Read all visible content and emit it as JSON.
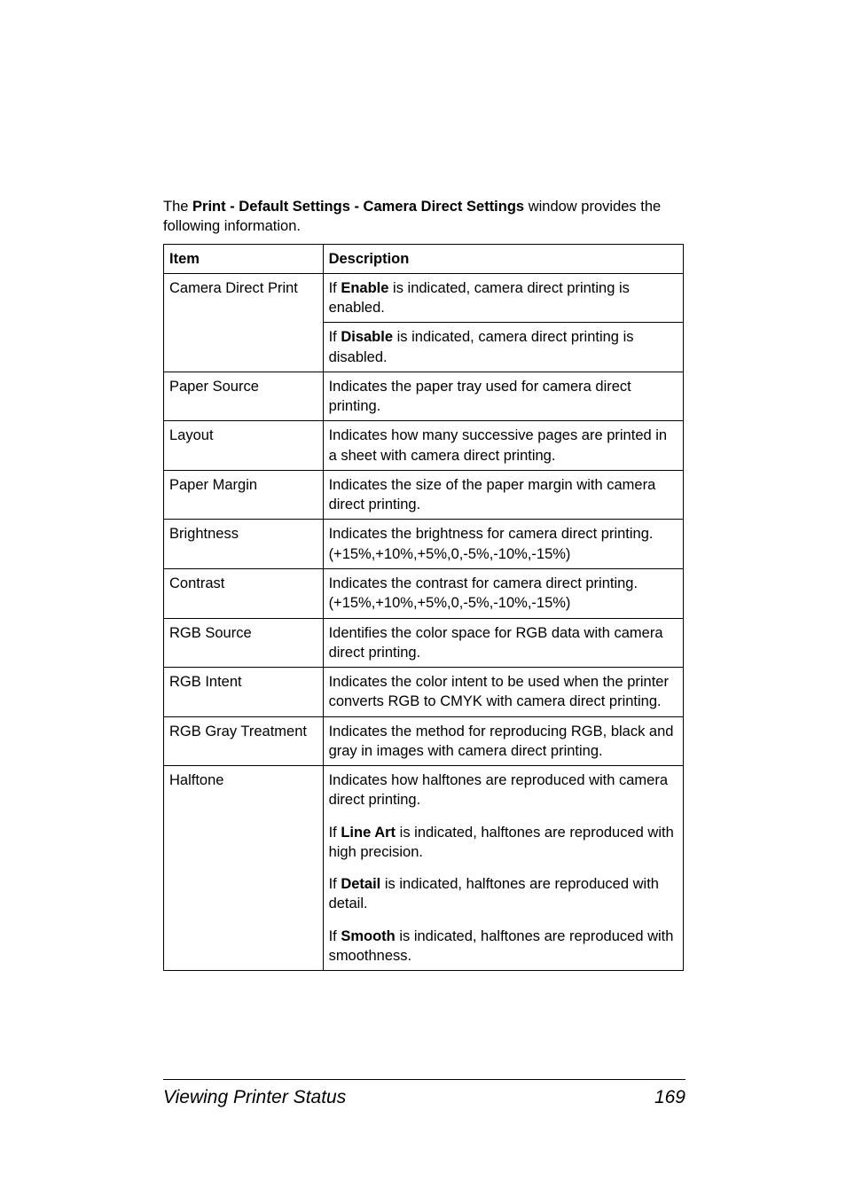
{
  "intro": {
    "prefix": "The ",
    "bold": "Print - Default Settings - Camera Direct Settings",
    "suffix": " window provides the following information."
  },
  "table": {
    "header": {
      "item": "Item",
      "description": "Description"
    },
    "rows": [
      {
        "item": "Camera Direct Print",
        "blocks": [
          {
            "pre": "If ",
            "bold": "Enable",
            "post": " is indicated, camera direct printing is enabled."
          },
          {
            "pre": "If ",
            "bold": "Disable",
            "post": " is indicated, camera direct printing is disabled."
          }
        ]
      },
      {
        "item": "Paper Source",
        "blocks": [
          {
            "text": "Indicates the paper tray used for camera direct printing."
          }
        ]
      },
      {
        "item": "Layout",
        "blocks": [
          {
            "text": "Indicates how many successive pages are printed in a sheet with camera direct printing."
          }
        ]
      },
      {
        "item": "Paper Margin",
        "blocks": [
          {
            "text": "Indicates the size of the paper margin with camera direct printing."
          }
        ]
      },
      {
        "item": "Brightness",
        "blocks": [
          {
            "text": "Indicates the brightness for camera direct printing. (+15%,+10%,+5%,0,-5%,-10%,-15%)"
          }
        ]
      },
      {
        "item": "Contrast",
        "blocks": [
          {
            "text": "Indicates the contrast for camera direct printing. (+15%,+10%,+5%,0,-5%,-10%,-15%)"
          }
        ]
      },
      {
        "item": "RGB Source",
        "blocks": [
          {
            "text": "Identifies the color space for RGB data with camera direct printing."
          }
        ]
      },
      {
        "item": "RGB Intent",
        "blocks": [
          {
            "text": "Indicates the color intent to be used when the printer converts RGB to CMYK with camera direct printing."
          }
        ]
      },
      {
        "item": "RGB Gray Treatment",
        "blocks": [
          {
            "text": "Indicates the method for reproducing RGB, black and gray in images with camera direct printing."
          }
        ]
      },
      {
        "item": "Halftone",
        "blocks": [
          {
            "text": "Indicates how halftones are reproduced with camera direct printing."
          },
          {
            "pre": "If ",
            "bold": "Line Art",
            "post": " is indicated, halftones are reproduced with high precision."
          },
          {
            "pre": "If ",
            "bold": "Detail",
            "post": " is indicated, halftones are reproduced with detail."
          },
          {
            "pre": "If ",
            "bold": "Smooth",
            "post": " is indicated, halftones are reproduced with smoothness."
          }
        ]
      }
    ]
  },
  "footer": {
    "title": "Viewing Printer Status",
    "page": "169"
  }
}
